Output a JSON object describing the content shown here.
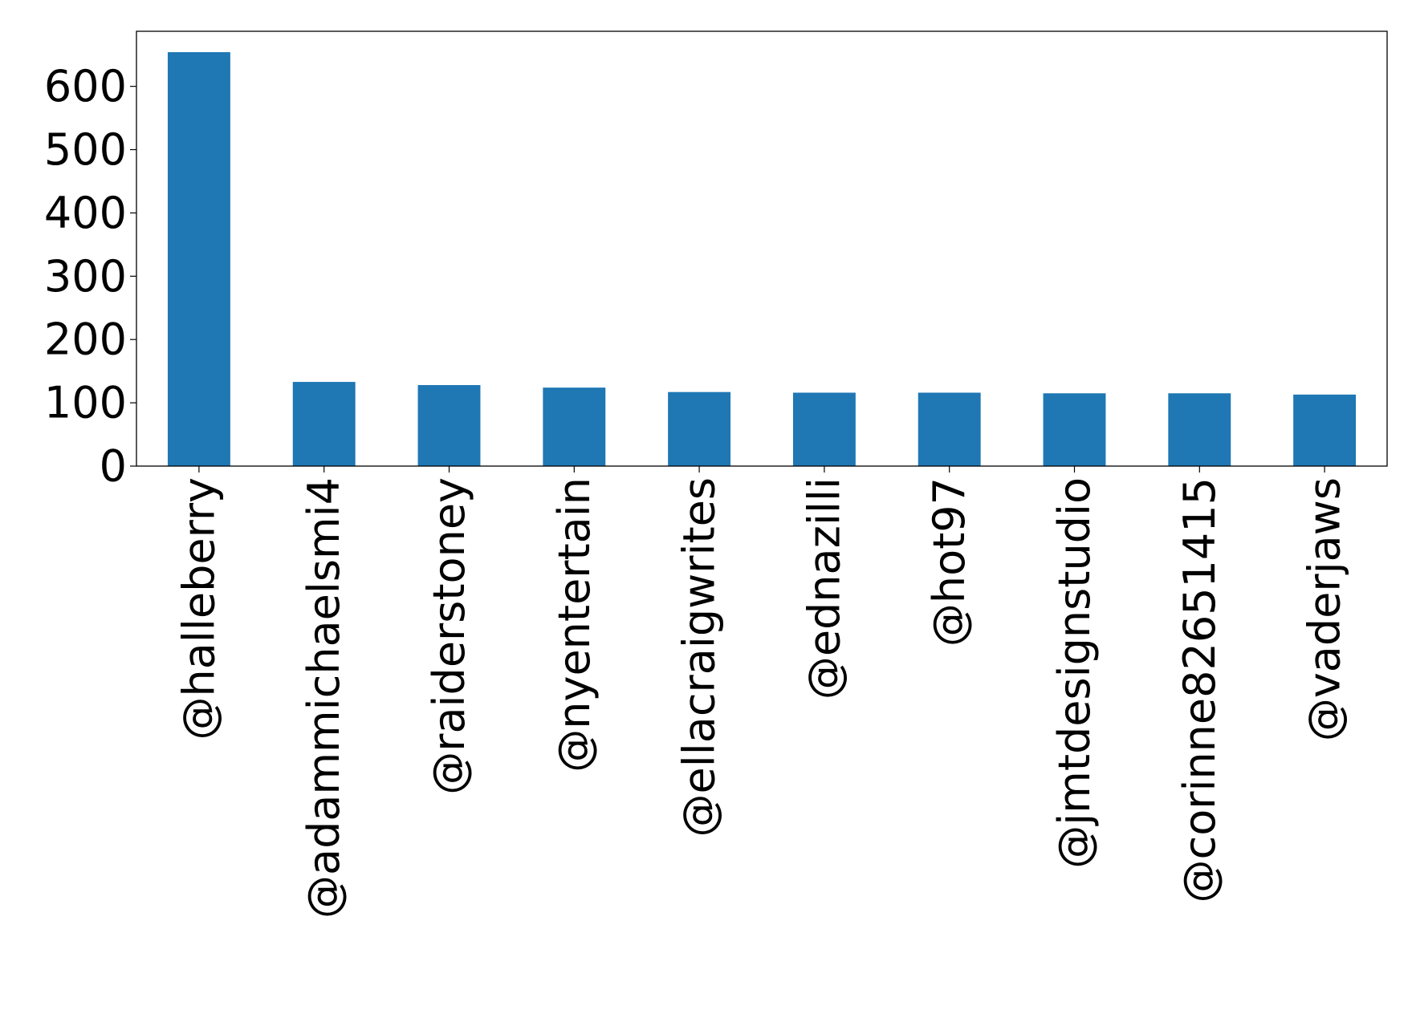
{
  "chart_data": {
    "type": "bar",
    "title": "",
    "xlabel": "",
    "ylabel": "",
    "categories": [
      "@halleberry",
      "@adammichaelsmi4",
      "@raiderstoney",
      "@nyentertain",
      "@ellacraigwrites",
      "@ednazilli",
      "@hot97",
      "@jmtdesignstudio",
      "@corinne82651415",
      "@vaderjaws"
    ],
    "values": [
      654,
      133,
      128,
      124,
      117,
      116,
      116,
      115,
      115,
      113
    ],
    "ylim": [
      0,
      687
    ],
    "yticks": [
      0,
      100,
      200,
      300,
      400,
      500,
      600
    ],
    "grid": false,
    "legend": "none",
    "bar_color": "#1f77b4",
    "x_tick_rotation": 90
  }
}
